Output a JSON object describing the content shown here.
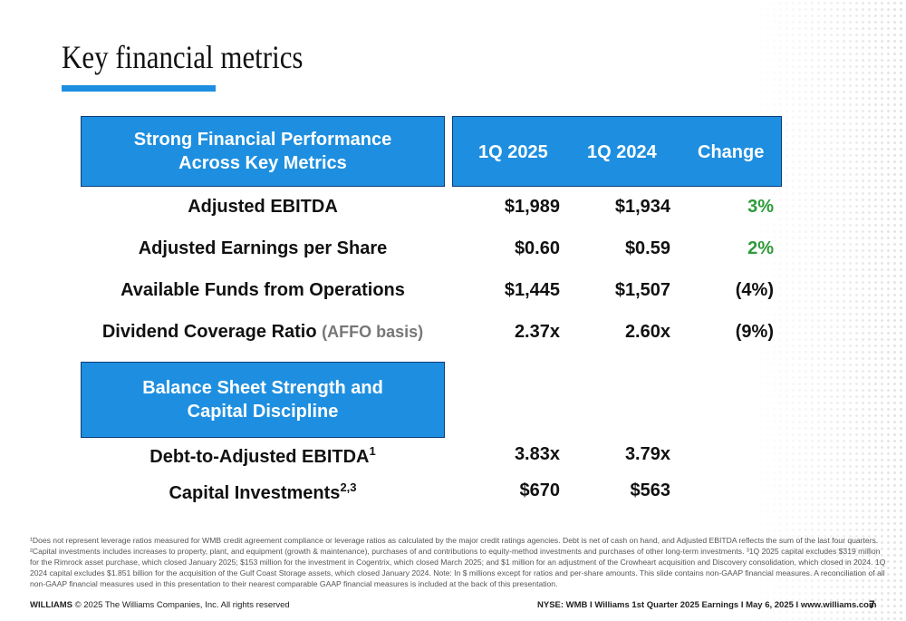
{
  "title": "Key financial metrics",
  "header_box": {
    "line1": "Strong Financial Performance",
    "line2": "Across Key Metrics"
  },
  "columns": {
    "c1": "1Q 2025",
    "c2": "1Q 2024",
    "c3": "Change"
  },
  "rows": [
    {
      "label": "Adjusted EBITDA",
      "note": "",
      "c1": "$1,989",
      "c2": "$1,934",
      "c3": "3%"
    },
    {
      "label": "Adjusted Earnings per Share",
      "note": "",
      "c1": "$0.60",
      "c2": "$0.59",
      "c3": "2%"
    },
    {
      "label": "Available Funds from Operations",
      "note": "",
      "c1": "$1,445",
      "c2": "$1,507",
      "c3": "(4%)"
    },
    {
      "label": "Dividend Coverage Ratio",
      "note": "(AFFO basis)",
      "c1": "2.37x",
      "c2": "2.60x",
      "c3": "(9%)"
    }
  ],
  "balance_box": {
    "line1": "Balance Sheet Strength and",
    "line2": "Capital Discipline"
  },
  "balance_rows": [
    {
      "label": "Debt-to-Adjusted EBITDA",
      "sup": "1",
      "c1": "3.83x",
      "c2": "3.79x"
    },
    {
      "label": "Capital Investments",
      "sup": "2,3",
      "c1": "$670",
      "c2": "$563"
    }
  ],
  "footnote": "¹Does not represent leverage ratios measured for WMB credit agreement compliance or leverage ratios as calculated by the major credit ratings agencies. Debt is net of cash on hand, and Adjusted EBITDA reflects the sum of the last four quarters. ²Capital investments includes increases to property, plant, and equipment (growth & maintenance), purchases of and contributions to equity-method investments and purchases of other long-term investments. ³1Q 2025 capital excludes $319 million for the Rimrock asset purchase, which closed January 2025; $153 million for the investment in Cogentrix, which closed March 2025; and $1 million for an adjustment of the Crowheart acquisition and Discovery consolidation, which closed in 2024. 1Q 2024 capital excludes $1.851 billion for the acquisition of the Gulf Coast Storage assets, which closed January 2024. Note: In $ millions except for ratios and per-share amounts. This slide contains non-GAAP financial measures. A reconciliation of all non-GAAP financial measures used in this presentation to their nearest comparable GAAP financial measures is included at the back of this presentation.",
  "footer": {
    "brand": "WILLIAMS",
    "copyright": "© 2025 The Williams Companies, Inc. All rights reserved",
    "right": "NYSE: WMB  I  Williams 1st Quarter 2025 Earnings I  May 6, 2025  I  www.williams.com",
    "page": "7"
  },
  "colors": {
    "accent": "#1e8fe0",
    "border": "#0b3d78",
    "positive": "#2e9a3a"
  }
}
